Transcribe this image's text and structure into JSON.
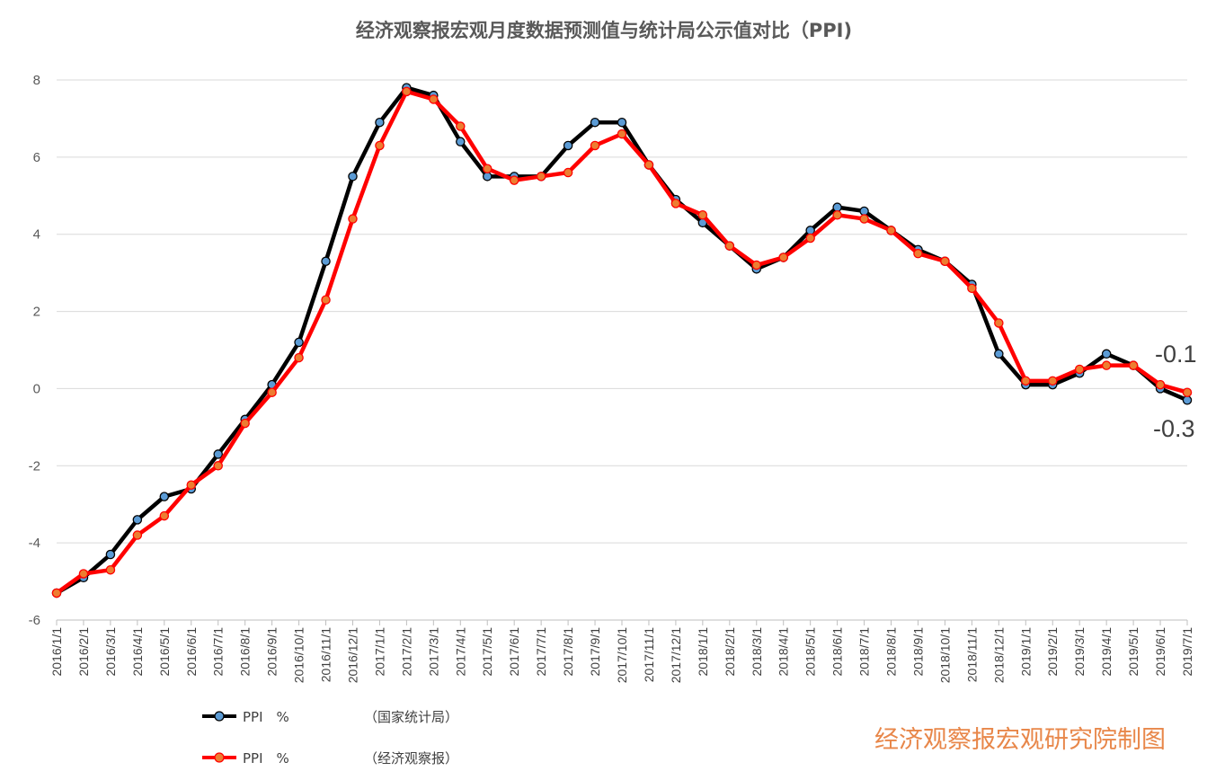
{
  "chart_data": {
    "type": "line",
    "title": "经济观察报宏观月度数据预测值与统计局公示值对比（PPI)",
    "xlabel": "",
    "ylabel": "",
    "ylim": [
      -6,
      8
    ],
    "yticks": [
      "-6",
      "-4",
      "-2",
      "0",
      "2",
      "4",
      "6",
      "8"
    ],
    "grid": true,
    "legend_position": "bottom-left",
    "categories": [
      "2016/1/1",
      "2016/2/1",
      "2016/3/1",
      "2016/4/1",
      "2016/5/1",
      "2016/6/1",
      "2016/7/1",
      "2016/8/1",
      "2016/9/1",
      "2016/10/1",
      "2016/11/1",
      "2016/12/1",
      "2017/1/1",
      "2017/2/1",
      "2017/3/1",
      "2017/4/1",
      "2017/5/1",
      "2017/6/1",
      "2017/7/1",
      "2017/8/1",
      "2017/9/1",
      "2017/10/1",
      "2017/11/1",
      "2017/12/1",
      "2018/1/1",
      "2018/2/1",
      "2018/3/1",
      "2018/4/1",
      "2018/5/1",
      "2018/6/1",
      "2018/7/1",
      "2018/8/1",
      "2018/9/1",
      "2018/10/1",
      "2018/11/1",
      "2018/12/1",
      "2019/1/1",
      "2019/2/1",
      "2019/3/1",
      "2019/4/1",
      "2019/5/1",
      "2019/6/1",
      "2019/7/1"
    ],
    "series": [
      {
        "name": "PPI　%",
        "source": "（国家统计局）",
        "line_color": "#000000",
        "marker_color": "#5b9bd5",
        "values": [
          -5.3,
          -4.9,
          -4.3,
          -3.4,
          -2.8,
          -2.6,
          -1.7,
          -0.8,
          0.1,
          1.2,
          3.3,
          5.5,
          6.9,
          7.8,
          7.6,
          6.4,
          5.5,
          5.5,
          5.5,
          6.3,
          6.9,
          6.9,
          5.8,
          4.9,
          4.3,
          3.7,
          3.1,
          3.4,
          4.1,
          4.7,
          4.6,
          4.1,
          3.6,
          3.3,
          2.7,
          0.9,
          0.1,
          0.1,
          0.4,
          0.9,
          0.6,
          0.0,
          -0.3
        ]
      },
      {
        "name": "PPI　%",
        "source": "（经济观察报）",
        "line_color": "#ff0000",
        "marker_color": "#ed7d31",
        "values": [
          -5.3,
          -4.8,
          -4.7,
          -3.8,
          -3.3,
          -2.5,
          -2.0,
          -0.9,
          -0.1,
          0.8,
          2.3,
          4.4,
          6.3,
          7.7,
          7.5,
          6.8,
          5.7,
          5.4,
          5.5,
          5.6,
          6.3,
          6.6,
          5.8,
          4.8,
          4.5,
          3.7,
          3.2,
          3.4,
          3.9,
          4.5,
          4.4,
          4.1,
          3.5,
          3.3,
          2.6,
          1.7,
          0.2,
          0.2,
          0.5,
          0.6,
          0.6,
          0.1,
          -0.1
        ]
      }
    ],
    "annotations": [
      "-0.1",
      "-0.3"
    ]
  },
  "watermark": "经济观察报宏观研究院制图"
}
